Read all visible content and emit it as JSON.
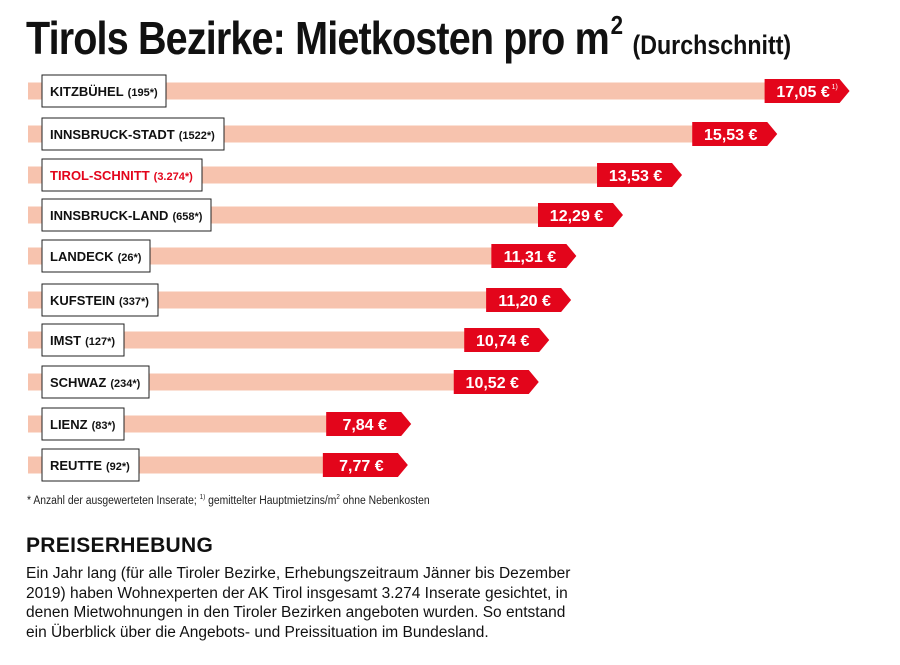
{
  "header": {
    "title": "Tirols Bezirke: Mietkosten pro m",
    "title_superscript": "2",
    "subtitle": "(Durchschnitt)"
  },
  "chart_data": {
    "type": "bar",
    "orientation": "horizontal",
    "categories": [
      "KITZBÜHEL",
      "INNSBRUCK-STADT",
      "TIROL-SCHNITT",
      "INNSBRUCK-LAND",
      "LANDECK",
      "KUFSTEIN",
      "IMST",
      "SCHWAZ",
      "LIENZ",
      "REUTTE"
    ],
    "category_counts": [
      "(195*)",
      "(1522*)",
      "(3.274*)",
      "(658*)",
      "(26*)",
      "(337*)",
      "(127*)",
      "(234*)",
      "(83*)",
      "(92*)"
    ],
    "values": [
      17.05,
      15.53,
      13.53,
      12.29,
      11.31,
      11.2,
      10.74,
      10.52,
      7.84,
      7.77
    ],
    "value_labels": [
      "17,05 €",
      "15,53 €",
      "13,53 €",
      "12,29 €",
      "11,31 €",
      "11,20 €",
      "10,74 €",
      "10,52 €",
      "7,84 €",
      "7,77 €"
    ],
    "first_value_note": "1)",
    "highlight_category": "TIROL-SCHNITT",
    "colors": {
      "bar": "#f7c3ae",
      "value_tag": "#e3051b",
      "highlight_text": "#e3051b",
      "label_border": "#222222"
    }
  },
  "footnote": {
    "text_a": "* Anzahl der ausgewerteten Inserate; ",
    "note_mark": "1)",
    "text_b": " gemittelter Hauptmietzins/m",
    "unit_sup": "2",
    "text_c": " ohne Nebenkosten"
  },
  "section": {
    "heading": "PREISERHEBUNG",
    "body": "Ein Jahr lang (für alle Tiroler Bezirke, Erhebungszeitraum Jänner bis Dezember 2019) haben Wohnexperten der AK Tirol insgesamt 3.274 Inserate gesichtet, in denen Mietwohnungen in den Tiroler Bezirken angeboten wurden. So entstand ein Überblick über die Angebots- und Preissituation im Bundesland."
  }
}
